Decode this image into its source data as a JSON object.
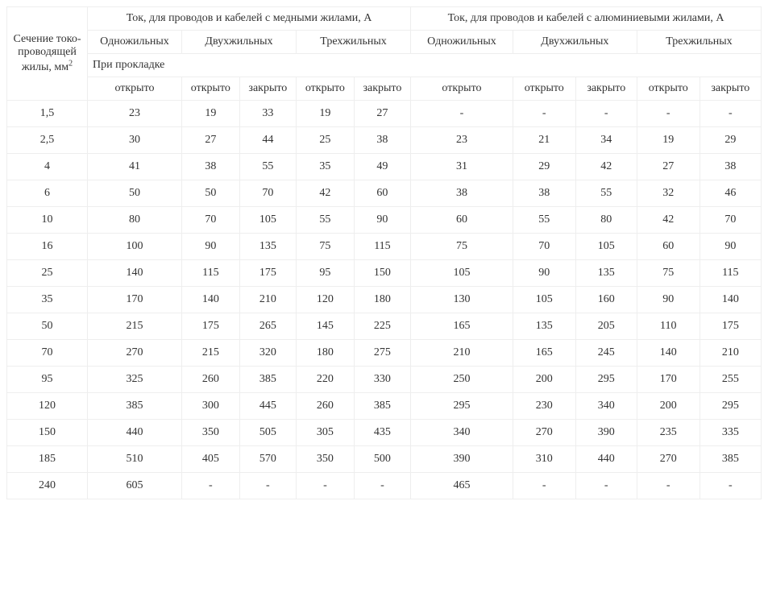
{
  "table": {
    "font_family": "Georgia, serif",
    "font_size": 14,
    "border_color": "#eeeeee",
    "background_color": "#ffffff",
    "text_color": "#333333",
    "header": {
      "section_label": "Сечение токо-проводящей жилы, мм²",
      "copper_header": "Ток, для проводов и кабелей с медными жилами, А",
      "aluminum_header": "Ток, для проводов и кабелей с алюминиевыми жилами, А",
      "single_core": "Одножильных",
      "two_core": "Двухжильных",
      "three_core": "Трехжильных",
      "installation_label": "При прокладке",
      "open": "открыто",
      "closed": "закрыто"
    },
    "columns": [
      "section",
      "cu_1_open",
      "cu_2_open",
      "cu_2_closed",
      "cu_3_open",
      "cu_3_closed",
      "al_1_open",
      "al_2_open",
      "al_2_closed",
      "al_3_open",
      "al_3_closed"
    ],
    "rows": [
      [
        "1,5",
        "23",
        "19",
        "33",
        "19",
        "27",
        "-",
        "-",
        "-",
        "-",
        "-"
      ],
      [
        "2,5",
        "30",
        "27",
        "44",
        "25",
        "38",
        "23",
        "21",
        "34",
        "19",
        "29"
      ],
      [
        "4",
        "41",
        "38",
        "55",
        "35",
        "49",
        "31",
        "29",
        "42",
        "27",
        "38"
      ],
      [
        "6",
        "50",
        "50",
        "70",
        "42",
        "60",
        "38",
        "38",
        "55",
        "32",
        "46"
      ],
      [
        "10",
        "80",
        "70",
        "105",
        "55",
        "90",
        "60",
        "55",
        "80",
        "42",
        "70"
      ],
      [
        "16",
        "100",
        "90",
        "135",
        "75",
        "115",
        "75",
        "70",
        "105",
        "60",
        "90"
      ],
      [
        "25",
        "140",
        "115",
        "175",
        "95",
        "150",
        "105",
        "90",
        "135",
        "75",
        "115"
      ],
      [
        "35",
        "170",
        "140",
        "210",
        "120",
        "180",
        "130",
        "105",
        "160",
        "90",
        "140"
      ],
      [
        "50",
        "215",
        "175",
        "265",
        "145",
        "225",
        "165",
        "135",
        "205",
        "110",
        "175"
      ],
      [
        "70",
        "270",
        "215",
        "320",
        "180",
        "275",
        "210",
        "165",
        "245",
        "140",
        "210"
      ],
      [
        "95",
        "325",
        "260",
        "385",
        "220",
        "330",
        "250",
        "200",
        "295",
        "170",
        "255"
      ],
      [
        "120",
        "385",
        "300",
        "445",
        "260",
        "385",
        "295",
        "230",
        "340",
        "200",
        "295"
      ],
      [
        "150",
        "440",
        "350",
        "505",
        "305",
        "435",
        "340",
        "270",
        "390",
        "235",
        "335"
      ],
      [
        "185",
        "510",
        "405",
        "570",
        "350",
        "500",
        "390",
        "310",
        "440",
        "270",
        "385"
      ],
      [
        "240",
        "605",
        "-",
        "-",
        "-",
        "-",
        "465",
        "-",
        "-",
        "-",
        "-"
      ]
    ]
  }
}
